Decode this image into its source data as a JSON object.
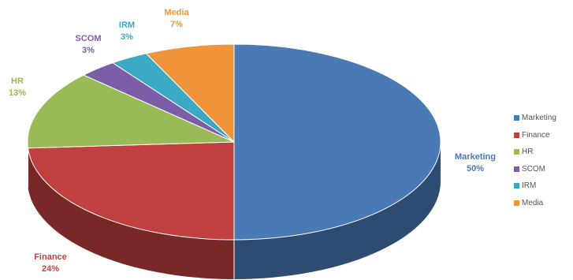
{
  "chart_data": {
    "type": "pie",
    "title": "",
    "legend_position": "right",
    "slices": [
      {
        "label": "Marketing",
        "value": 50,
        "pct_label": "50%",
        "color": "#4a7ab6"
      },
      {
        "label": "Finance",
        "value": 24,
        "pct_label": "24%",
        "color": "#c0413f"
      },
      {
        "label": "HR",
        "value": 13,
        "pct_label": "13%",
        "color": "#9aba58"
      },
      {
        "label": "SCOM",
        "value": 3,
        "pct_label": "3%",
        "color": "#7b5ea7"
      },
      {
        "label": "IRM",
        "value": 3,
        "pct_label": "3%",
        "color": "#3ba8c4"
      },
      {
        "label": "Media",
        "value": 7,
        "pct_label": "7%",
        "color": "#f0943c"
      }
    ]
  }
}
